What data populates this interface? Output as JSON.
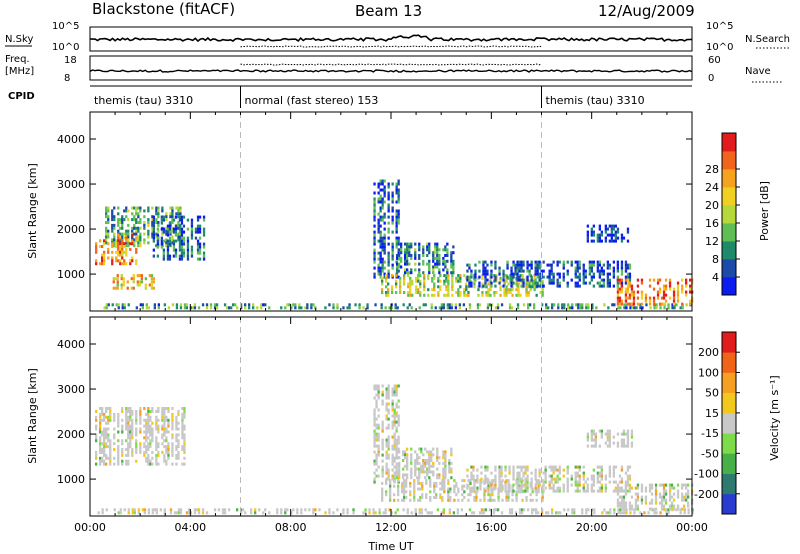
{
  "header": {
    "station": "Blackstone (fitACF)",
    "beam": "Beam 13",
    "date": "12/Aug/2009"
  },
  "status_panels": {
    "nsky_label": "N.Sky",
    "nsky_ticks": [
      "10^5",
      "10^0"
    ],
    "nsky_right_ticks": [
      "10^5",
      "10^0"
    ],
    "nsearch_label": "N.Search",
    "freq_label": "Freq.",
    "freq_unit": "[MHz]",
    "freq_ticks": [
      "18",
      "8"
    ],
    "nave_ticks": [
      "60",
      "0"
    ],
    "nave_label": "Nave",
    "cpid_label": "CPID",
    "cpid_segments": [
      {
        "start": 0,
        "end": 6,
        "label": "themis (tau) 3310"
      },
      {
        "start": 6,
        "end": 18,
        "label": "normal (fast stereo) 153"
      },
      {
        "start": 18,
        "end": 24,
        "label": "themis (tau) 3310"
      }
    ]
  },
  "chart_data": [
    {
      "type": "heatmap",
      "name": "power",
      "ylabel": "Slant Range [km]",
      "xlim": [
        0,
        24
      ],
      "ylim": [
        180,
        4600
      ],
      "yticks": [
        1000,
        2000,
        3000,
        4000
      ],
      "dashed_lines_x": [
        6,
        18
      ],
      "colorbar": {
        "label": "Power [dB]",
        "ticks": [
          "4",
          "8",
          "12",
          "16",
          "20",
          "24",
          "28"
        ],
        "colors": [
          "#0a1cf0",
          "#1b4aa8",
          "#1e8a6a",
          "#5fbf55",
          "#b6d83a",
          "#f0d020",
          "#f5a21e",
          "#f0641e",
          "#e21c1c"
        ]
      },
      "regions": [
        {
          "x": [
            0.6,
            3.6
          ],
          "y": [
            1600,
            2500
          ],
          "level": 0.35
        },
        {
          "x": [
            0.2,
            1.8
          ],
          "y": [
            1200,
            1900
          ],
          "level": 0.75
        },
        {
          "x": [
            0.9,
            2.6
          ],
          "y": [
            650,
            1000
          ],
          "level": 0.65
        },
        {
          "x": [
            2.5,
            4.5
          ],
          "y": [
            1300,
            2300
          ],
          "level": 0.2
        },
        {
          "x": [
            0.3,
            24
          ],
          "y": [
            220,
            350
          ],
          "level": 0.3
        },
        {
          "x": [
            11.3,
            12.3
          ],
          "y": [
            900,
            3100
          ],
          "level": 0.18
        },
        {
          "x": [
            11.6,
            18
          ],
          "y": [
            500,
            1000
          ],
          "level": 0.5
        },
        {
          "x": [
            12.2,
            14.5
          ],
          "y": [
            1000,
            1700
          ],
          "level": 0.25
        },
        {
          "x": [
            15,
            21.5
          ],
          "y": [
            700,
            1300
          ],
          "level": 0.15
        },
        {
          "x": [
            21,
            24
          ],
          "y": [
            300,
            900
          ],
          "level": 0.8
        },
        {
          "x": [
            19.8,
            21.6
          ],
          "y": [
            1700,
            2100
          ],
          "level": 0.1
        }
      ]
    },
    {
      "type": "heatmap",
      "name": "velocity",
      "ylabel": "Slant Range [km]",
      "xlabel": "Time UT",
      "xlim": [
        0,
        24
      ],
      "xticks": [
        "00:00",
        "04:00",
        "08:00",
        "12:00",
        "16:00",
        "20:00",
        "00:00"
      ],
      "ylim": [
        180,
        4600
      ],
      "yticks": [
        1000,
        2000,
        3000,
        4000
      ],
      "dashed_lines_x": [
        6,
        18
      ],
      "colorbar": {
        "label": "Velocity [m s⁻¹]",
        "ticks": [
          "200",
          "100",
          "50",
          "15",
          "-15",
          "-50",
          "-100",
          "-200"
        ],
        "colors": [
          "#2a3cd0",
          "#2e7a70",
          "#48b048",
          "#7edc4a",
          "#c8c8c8",
          "#f2c81e",
          "#f5a020",
          "#f06418",
          "#e01c1c"
        ]
      },
      "regions": [
        {
          "x": [
            0.2,
            3.8
          ],
          "y": [
            1300,
            2600
          ],
          "level": 0.5
        },
        {
          "x": [
            0.3,
            24
          ],
          "y": [
            220,
            350
          ],
          "level": 0.45
        },
        {
          "x": [
            11.3,
            12.3
          ],
          "y": [
            900,
            3100
          ],
          "level": 0.5
        },
        {
          "x": [
            11.6,
            18
          ],
          "y": [
            500,
            1000
          ],
          "level": 0.5
        },
        {
          "x": [
            12.2,
            14.5
          ],
          "y": [
            1000,
            1700
          ],
          "level": 0.5
        },
        {
          "x": [
            15,
            21.5
          ],
          "y": [
            700,
            1300
          ],
          "level": 0.5
        },
        {
          "x": [
            21,
            24
          ],
          "y": [
            300,
            900
          ],
          "level": 0.5
        },
        {
          "x": [
            19.8,
            21.6
          ],
          "y": [
            1700,
            2100
          ],
          "level": 0.5
        }
      ]
    }
  ]
}
